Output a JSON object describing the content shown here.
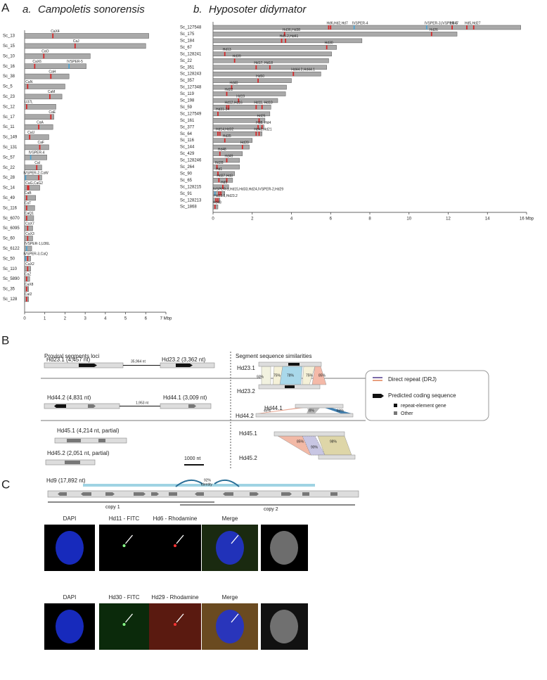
{
  "chart_data": [
    {
      "type": "bar",
      "orientation": "horizontal",
      "panel": "a.",
      "title": "Campoletis sonorensis",
      "color": "#a9a9a9",
      "categories": [
        "Sc_13",
        "Sc_15",
        "Sc_10",
        "Sc_16",
        "Sc_38",
        "Sc_5",
        "Sc_23",
        "Sc_12",
        "Sc_17",
        "Sc_11",
        "Sc_149",
        "Sc_131",
        "Sc_57",
        "Sc_22",
        "Sc_28",
        "Sc_14",
        "Sc_49",
        "Sc_116",
        "Sc_6070",
        "Sc_6095",
        "Sc_60",
        "Sc_6122",
        "Sc_50",
        "Sc_110",
        "Sc_5890",
        "Sc_35",
        "Sc_128"
      ],
      "values": [
        6.15,
        6.0,
        3.25,
        3.05,
        2.2,
        2.0,
        1.85,
        1.55,
        1.45,
        1.4,
        1.2,
        1.2,
        1.1,
        0.85,
        0.85,
        0.75,
        0.55,
        0.5,
        0.45,
        0.4,
        0.4,
        0.35,
        0.3,
        0.3,
        0.25,
        0.2,
        0.2
      ],
      "markers": [
        [
          {
            "x": 1.4,
            "color": "#d62728",
            "label": "CaX4"
          }
        ],
        [
          {
            "x": 2.5,
            "color": "#d62728",
            "label": "CaJ"
          }
        ],
        [
          {
            "x": 0.95,
            "color": "#d62728",
            "label": "CaO"
          }
        ],
        [
          {
            "x": 0.5,
            "color": "#d62728",
            "label": "CaX6"
          },
          {
            "x": 2.2,
            "color": "#4fa3d1",
            "label": "IVSPER-5"
          }
        ],
        [
          {
            "x": 1.3,
            "color": "#d62728",
            "label": "CaH"
          }
        ],
        [
          {
            "x": 0.15,
            "color": "#d62728",
            "label": "CaN"
          }
        ],
        [
          {
            "x": 1.25,
            "color": "#d62728",
            "label": "CaM"
          }
        ],
        [
          {
            "x": 0.1,
            "color": "#d62728",
            "label": "U37L"
          }
        ],
        [
          {
            "x": 1.3,
            "color": "#d62728",
            "label": "CaE"
          }
        ],
        [
          {
            "x": 0.7,
            "color": "#d62728",
            "label": "CaA"
          }
        ],
        [
          {
            "x": 0.25,
            "color": "#d62728",
            "label": "CaU"
          }
        ],
        [
          {
            "x": 0.75,
            "color": "#d62728",
            "label": "CaF"
          }
        ],
        [
          {
            "x": 0.3,
            "color": "#4fa3d1",
            "label": "IVSPER-4"
          }
        ],
        [
          {
            "x": 0.6,
            "color": "#d62728",
            "label": "CaI"
          }
        ],
        [
          {
            "x": 0.05,
            "color": "#4fa3d1",
            "label": "IVSPER-2,CaW"
          },
          {
            "x": 0.7,
            "color": "#d62728"
          }
        ],
        [
          {
            "x": 0.15,
            "color": "#d62728",
            "label": "CaG,CaG2"
          },
          {
            "x": 0.2,
            "color": "#d62728"
          }
        ],
        [
          {
            "x": 0.1,
            "color": "#d62728",
            "label": "CaB"
          }
        ],
        [
          {
            "x": 0.1,
            "color": "#d62728",
            "label": "CaT"
          }
        ],
        [
          {
            "x": 0.1,
            "color": "#d62728",
            "label": "CaQ1"
          }
        ],
        [
          {
            "x": 0.15,
            "color": "#d62728",
            "label": "CaX7"
          }
        ],
        [
          {
            "x": 0.15,
            "color": "#d62728",
            "label": "CaX3"
          }
        ],
        [
          {
            "x": 0.1,
            "color": "#4fa3d1",
            "label": "IVSPER-1,U36L"
          }
        ],
        [
          {
            "x": 0.05,
            "color": "#4fa3d1",
            "label": "IVSPER-3,CaQ"
          },
          {
            "x": 0.15,
            "color": "#d62728"
          }
        ],
        [
          {
            "x": 0.15,
            "color": "#d62728",
            "label": "CaX2"
          }
        ],
        [
          {
            "x": 0.1,
            "color": "#d62728",
            "label": "CaZ"
          }
        ],
        [
          {
            "x": 0.1,
            "color": "#d62728",
            "label": "CaX8"
          }
        ],
        [
          {
            "x": 0.1,
            "color": "#d62728",
            "label": "CaI2"
          }
        ]
      ],
      "xlim": [
        0,
        7
      ],
      "xticks": [
        0,
        1,
        2,
        3,
        4,
        5,
        6,
        {
          "value": 7,
          "label": "7 Mbp"
        }
      ]
    },
    {
      "type": "bar",
      "orientation": "horizontal",
      "panel": "b.",
      "title": "Hyposoter didymator",
      "color": "#a9a9a9",
      "categories": [
        "Sc_127548",
        "Sc_175",
        "Sc_184",
        "Sc_67",
        "Sc_128241",
        "Sc_22",
        "Sc_351",
        "Sc_128243",
        "Sc_357",
        "Sc_127348",
        "Sc_119",
        "Sc_198",
        "Sc_59",
        "Sc_127549",
        "Sc_161",
        "Sc_377",
        "Sc_64",
        "Sc_116",
        "Sc_144",
        "Sc_429",
        "Sc_128246",
        "Sc_264",
        "Sc_90",
        "Sc_65",
        "Sc_128215",
        "Sc_91",
        "Sc_128213",
        "Sc_1868"
      ],
      "values": [
        15.7,
        12.45,
        7.6,
        6.3,
        6.05,
        5.9,
        5.8,
        5.5,
        4.0,
        3.75,
        3.7,
        3.3,
        2.95,
        2.9,
        2.65,
        2.6,
        2.5,
        2.0,
        1.85,
        1.5,
        1.35,
        1.35,
        1.1,
        1.0,
        0.8,
        0.6,
        0.35,
        0.25
      ],
      "markers": [
        [
          {
            "x": 5.9,
            "color": "#d62728",
            "label": "Hd6,Hd2,Hd7"
          },
          {
            "x": 6.0,
            "color": "#d62728"
          },
          {
            "x": 7.2,
            "color": "#4fa3d1",
            "label": "IVSPER-4"
          },
          {
            "x": 10.9,
            "color": "#4fa3d1",
            "label": "IVSPER-3,IVSPER-5"
          },
          {
            "x": 12.2,
            "color": "#d62728",
            "label": "Hd47"
          },
          {
            "x": 12.95,
            "color": "#d62728",
            "label": "Hd5,Hd27"
          },
          {
            "x": 13.3,
            "color": "#d62728"
          }
        ],
        [
          {
            "x": 3.65,
            "color": "#d62728",
            "label": "Hd36,Hd38"
          },
          {
            "x": 11.15,
            "color": "#d62728",
            "label": "Hd26"
          }
        ],
        [
          {
            "x": 3.5,
            "color": "#d62728",
            "label": "Hd5.2,Hd41"
          },
          {
            "x": 3.7,
            "color": "#d62728"
          }
        ],
        [
          {
            "x": 5.8,
            "color": "#d62728",
            "label": "Hd30"
          }
        ],
        [
          {
            "x": 0.6,
            "color": "#d62728",
            "label": "Hd13"
          }
        ],
        [
          {
            "x": 1.1,
            "color": "#d62728",
            "label": "Hd39"
          }
        ],
        [
          {
            "x": 2.2,
            "color": "#d62728",
            "label": "Hd17, Hd18"
          },
          {
            "x": 2.9,
            "color": "#d62728"
          }
        ],
        [
          {
            "x": 4.1,
            "color": "#d62728",
            "label": "Hd44.2,Hd44.1"
          }
        ],
        [
          {
            "x": 2.3,
            "color": "#d62728",
            "label": "Hd50"
          }
        ],
        [
          {
            "x": 0.95,
            "color": "#d62728",
            "label": "Hd40"
          }
        ],
        [
          {
            "x": 0.7,
            "color": "#d62728",
            "label": "Hd22"
          }
        ],
        [
          {
            "x": 1.3,
            "color": "#d62728",
            "label": "Hd19"
          }
        ],
        [
          {
            "x": 0.7,
            "color": "#d62728",
            "label": "Hd12,Hd16"
          },
          {
            "x": 0.8,
            "color": "#d62728"
          },
          {
            "x": 2.2,
            "color": "#d62728",
            "label": "Hd11, Hd10"
          },
          {
            "x": 2.5,
            "color": "#d62728"
          }
        ],
        [
          {
            "x": 0.25,
            "color": "#d62728",
            "label": "Hd31-34"
          }
        ],
        [
          {
            "x": 2.35,
            "color": "#d62728",
            "label": "Hd25"
          }
        ],
        [
          {
            "x": 2.3,
            "color": "#d62728",
            "label": "Hd8, Hd4"
          },
          {
            "x": 2.5,
            "color": "#d62728"
          }
        ],
        [
          {
            "x": 0.25,
            "color": "#d62728",
            "label": "Hd14,Hd32"
          },
          {
            "x": 0.35,
            "color": "#d62728"
          },
          {
            "x": 2.2,
            "color": "#d62728",
            "label": "Hd42,Hd21"
          },
          {
            "x": 2.35,
            "color": "#d62728"
          }
        ],
        [
          {
            "x": 0.6,
            "color": "#d62728",
            "label": "Hd35"
          }
        ],
        [
          {
            "x": 1.5,
            "color": "#d62728",
            "label": "Hd20"
          }
        ],
        [
          {
            "x": 0.35,
            "color": "#d62728",
            "label": "Hd48"
          }
        ],
        [
          {
            "x": 0.7,
            "color": "#d62728",
            "label": "Hd49"
          }
        ],
        [
          {
            "x": 0.2,
            "color": "#d62728",
            "label": "Hd28"
          }
        ],
        [
          {
            "x": 0.25,
            "color": "#d62728",
            "label": "Hd1"
          }
        ],
        [
          {
            "x": 0.3,
            "color": "#d62728",
            "label": "Hd37,Hd3"
          },
          {
            "x": 0.7,
            "color": "#d62728"
          }
        ],
        [
          {
            "x": 0.5,
            "color": "#d62728",
            "label": "Hd9"
          }
        ],
        [
          {
            "x": 0.1,
            "color": "#4fa3d1",
            "label": "IVSPER-1,Hd15,Hd33,Hd24,IVSPER-2,Hd29"
          },
          {
            "x": 0.3,
            "color": "#d62728"
          },
          {
            "x": 0.4,
            "color": "#d62728"
          }
        ],
        [
          {
            "x": 0.15,
            "color": "#d62728",
            "label": "Hd23.1,Hd23.2"
          },
          {
            "x": 0.25,
            "color": "#d62728"
          }
        ],
        [
          {
            "x": 0.1,
            "color": "#d62728",
            "label": "Hd43"
          }
        ]
      ],
      "xlim": [
        0,
        16
      ],
      "xticks": [
        0,
        2,
        4,
        6,
        8,
        10,
        12,
        {
          "value": 14,
          "label": "14"
        },
        {
          "value": 16,
          "label": "16 Mbp"
        }
      ]
    }
  ],
  "panel_labels": {
    "a": "A",
    "b": "B",
    "c": "C"
  },
  "panel_b": {
    "left_title": "Proviral segments loci",
    "right_title": "Segment sequence similarities",
    "hd23_1": "Hd23.1 (4,457 nt)",
    "gap1": "35,964 nt",
    "hd23_2": "Hd23.2 (3,362 nt)",
    "hd44_2": "Hd44.2 (4,831 nt)",
    "gap2": "1,953 nt",
    "hd44_1": "Hd44.1 (3,009 nt)",
    "hd45_1": "Hd45.1 (4,214 nt, partial)",
    "hd45_2": "Hd45.2 (2,051 nt, partial)",
    "scale": "1000 nt",
    "hd9": "Hd9 (17,892 nt)",
    "identity_pct": "92%",
    "identity": "identity",
    "copy1": "copy 1",
    "copy2": "copy 2",
    "sim": {
      "a_top": "Hd23.1",
      "a_bottom": "Hd23.2",
      "a_pcts": [
        "93%",
        "75%",
        "78%",
        "75%",
        "85%"
      ],
      "b_top": "Hd44.1",
      "b_bottom": "Hd44.2",
      "b_pcts": [
        "45%",
        "78%",
        "63%"
      ],
      "c_top": "Hd45.1",
      "c_bottom": "Hd45.2",
      "c_pcts": [
        "85%",
        "90%",
        "98%"
      ]
    },
    "legend": {
      "drj": "Direct repeat (DRJ)",
      "cds": "Predicted coding sequence",
      "rep": "repeat-element gene",
      "other": "Other"
    }
  },
  "panel_c": {
    "row1": [
      "DAPI",
      "Hd11 - FITC",
      "Hd6 - Rhodamine",
      "Merge"
    ],
    "row2": [
      "DAPI",
      "Hd30 - FITC",
      "Hd29 - Rhodamine",
      "Merge"
    ]
  }
}
